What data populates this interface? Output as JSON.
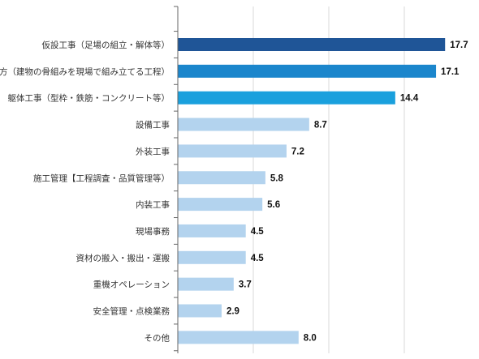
{
  "chart_data": {
    "type": "bar",
    "orientation": "horizontal",
    "categories": [
      "仮設工事（足場の組立・解体等）",
      "建方（建物の骨組みを現場で組み立てる工程）",
      "躯体工事（型枠・鉄筋・コンクリート等）",
      "設備工事",
      "外装工事",
      "施工管理【工程調査・品質管理等）",
      "内装工事",
      "現場事務",
      "資材の搬入・搬出・運搬",
      "重機オペレーション",
      "安全管理・点検業務",
      "その他"
    ],
    "values": [
      17.7,
      17.1,
      14.4,
      8.7,
      7.2,
      5.8,
      5.6,
      4.5,
      4.5,
      3.7,
      2.9,
      8.0
    ],
    "value_labels": [
      "17.7",
      "17.1",
      "14.4",
      "8.7",
      "7.2",
      "5.8",
      "5.6",
      "4.5",
      "4.5",
      "3.7",
      "2.9",
      "8.0"
    ],
    "bar_colors": [
      "#1f5597",
      "#1b86cc",
      "#1aa0dd",
      "#b3d3ee",
      "#b3d3ee",
      "#b3d3ee",
      "#b3d3ee",
      "#b3d3ee",
      "#b3d3ee",
      "#b3d3ee",
      "#b3d3ee",
      "#b3d3ee"
    ],
    "xlim": [
      0,
      20
    ],
    "gridlines": [
      5,
      10,
      15,
      20
    ],
    "grid": true,
    "legend": "none",
    "title": "",
    "xlabel": "",
    "ylabel": ""
  },
  "colors": {
    "axis": "#666666",
    "grid": "#d9d9d9"
  }
}
